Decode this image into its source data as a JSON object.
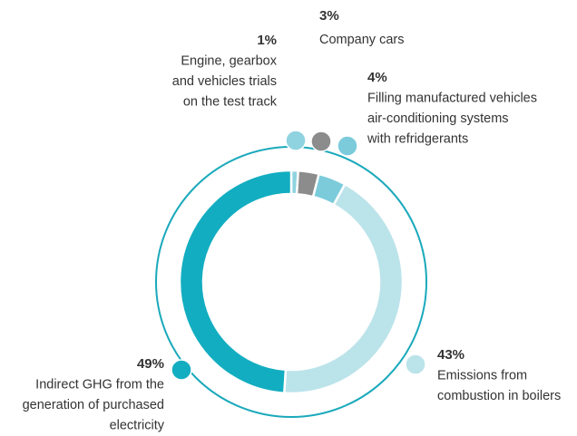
{
  "chart_data": {
    "type": "pie",
    "categories": [
      [
        "Engine, gearbox",
        "and vehicles trials",
        "on the test track"
      ],
      [
        "Company cars"
      ],
      [
        "Filling manufactured vehicles",
        "air-conditioning systems",
        "with refridgerants"
      ],
      [
        "Emissions from",
        "combustion in boilers"
      ],
      [
        "Indirect GHG from the",
        "generation of purchased",
        "electricity"
      ]
    ],
    "values": [
      1,
      3,
      4,
      43,
      49
    ],
    "value_labels": [
      "1%",
      "3%",
      "4%",
      "43%",
      "49%"
    ],
    "colors": [
      "#8fd3e0",
      "#8c8c8c",
      "#7ccbdb",
      "#bbe3ea",
      "#12adc1"
    ],
    "ring_color": "#1aa9bb"
  }
}
